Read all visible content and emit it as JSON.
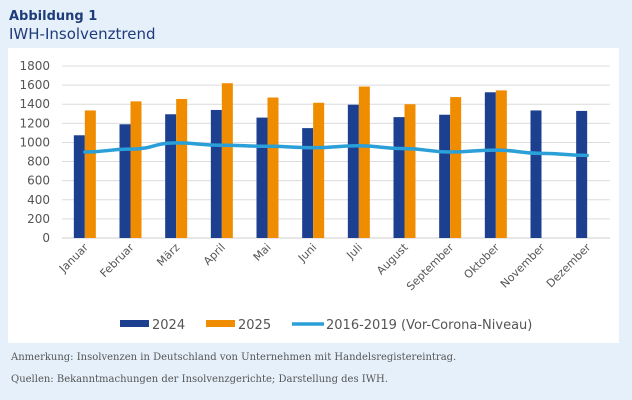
{
  "header": {
    "kicker": "Abbildung 1",
    "title": "IWH-Insolvenztrend"
  },
  "chart_data": {
    "type": "bar",
    "categories": [
      "Januar",
      "Februar",
      "März",
      "April",
      "Mai",
      "Juni",
      "Juli",
      "August",
      "September",
      "Oktober",
      "November",
      "Dezember"
    ],
    "series": [
      {
        "name": "2024",
        "type": "bar",
        "color": "#1c3f8f",
        "values": [
          1075,
          1190,
          1295,
          1340,
          1260,
          1150,
          1395,
          1265,
          1290,
          1525,
          1335,
          1330
        ]
      },
      {
        "name": "2025",
        "type": "bar",
        "color": "#f08c00",
        "values": [
          1335,
          1430,
          1455,
          1620,
          1470,
          1415,
          1585,
          1400,
          1475,
          1545,
          null,
          null
        ]
      },
      {
        "name": "2016-2019 (Vor-Corona-Niveau)",
        "type": "line",
        "color": "#2a9fd8",
        "values": [
          900,
          930,
          995,
          970,
          960,
          945,
          965,
          935,
          900,
          920,
          885,
          865
        ]
      }
    ],
    "ylim": [
      0,
      1800
    ],
    "yticks": [
      0,
      200,
      400,
      600,
      800,
      1000,
      1200,
      1400,
      1600,
      1800
    ],
    "grid": true,
    "legend": "bottom"
  },
  "footer": {
    "note": "Anmerkung: Insolvenzen in Deutschland von Unternehmen mit Handelsregistereintrag.",
    "source": "Quellen: Bekanntmachungen der Insolvenzgerichte; Darstellung des IWH."
  }
}
